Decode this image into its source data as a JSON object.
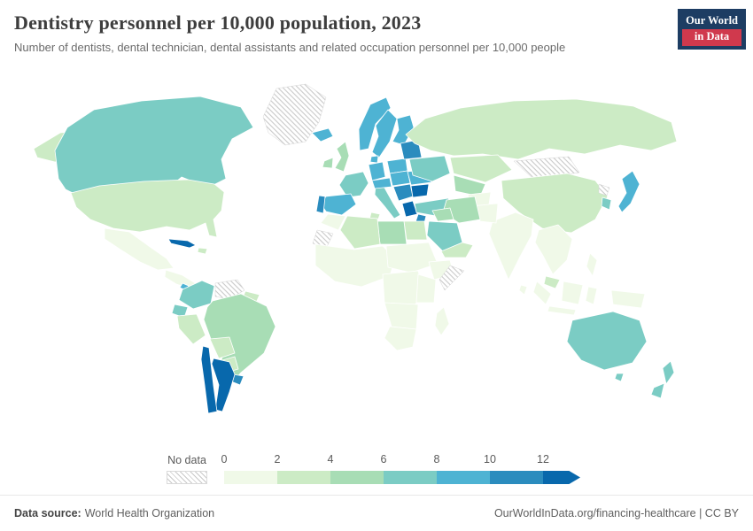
{
  "header": {
    "title": "Dentistry personnel per 10,000 population, 2023",
    "subtitle": "Number of dentists, dental technician, dental assistants and related occupation personnel per 10,000 people",
    "logo_line1": "Our World",
    "logo_line2": "in Data"
  },
  "legend": {
    "no_data_label": "No data",
    "ticks": [
      "0",
      "2",
      "4",
      "6",
      "8",
      "10",
      "12"
    ],
    "colors": [
      "#f0f9e8",
      "#ccebc5",
      "#a8ddb5",
      "#7bccc4",
      "#4eb3d3",
      "#2b8cbe",
      "#0868ac"
    ]
  },
  "footer": {
    "datasource_label": "Data source:",
    "datasource_value": "World Health Organization",
    "attribution": "OurWorldInData.org/financing-healthcare | CC BY"
  },
  "chart_data": {
    "type": "choropleth_map",
    "title": "Dentistry personnel per 10,000 population, 2023",
    "year": 2023,
    "unit": "personnel per 10,000 people",
    "legend_bins": [
      "0-2",
      "2-4",
      "4-6",
      "6-8",
      "8-10",
      "10-12",
      "12+"
    ],
    "no_data_style": "diagonal-hatch",
    "regions": [
      {
        "id": "alaska",
        "name": "United States (Alaska)",
        "value": "2-4"
      },
      {
        "id": "canada",
        "name": "Canada",
        "value": "6-8"
      },
      {
        "id": "greenland",
        "name": "Greenland",
        "value": "no-data"
      },
      {
        "id": "usa",
        "name": "United States",
        "value": "2-4"
      },
      {
        "id": "mexico",
        "name": "Mexico",
        "value": "0-2"
      },
      {
        "id": "central-america",
        "name": "Central America",
        "value": "0-2"
      },
      {
        "id": "costa-rica",
        "name": "Costa Rica",
        "value": "8-10"
      },
      {
        "id": "cuba",
        "name": "Cuba",
        "value": "12+"
      },
      {
        "id": "hispaniola",
        "name": "Dominican Republic / Haiti",
        "value": "2-4"
      },
      {
        "id": "colombia",
        "name": "Colombia",
        "value": "6-8"
      },
      {
        "id": "venezuela",
        "name": "Venezuela",
        "value": "no-data"
      },
      {
        "id": "guyanas",
        "name": "Guyana / Suriname",
        "value": "2-4"
      },
      {
        "id": "ecuador",
        "name": "Ecuador",
        "value": "6-8"
      },
      {
        "id": "peru",
        "name": "Peru",
        "value": "2-4"
      },
      {
        "id": "brazil",
        "name": "Brazil",
        "value": "4-6"
      },
      {
        "id": "bolivia",
        "name": "Bolivia",
        "value": "2-4"
      },
      {
        "id": "paraguay",
        "name": "Paraguay",
        "value": "2-4"
      },
      {
        "id": "uruguay",
        "name": "Uruguay",
        "value": "10-12"
      },
      {
        "id": "argentina",
        "name": "Argentina",
        "value": "12+"
      },
      {
        "id": "chile",
        "name": "Chile",
        "value": "12+"
      },
      {
        "id": "iceland",
        "name": "Iceland",
        "value": "8-10"
      },
      {
        "id": "ireland",
        "name": "Ireland",
        "value": "4-6"
      },
      {
        "id": "uk",
        "name": "United Kingdom",
        "value": "4-6"
      },
      {
        "id": "norway",
        "name": "Norway",
        "value": "8-10"
      },
      {
        "id": "sweden",
        "name": "Sweden",
        "value": "8-10"
      },
      {
        "id": "finland",
        "name": "Finland",
        "value": "8-10"
      },
      {
        "id": "denmark",
        "name": "Denmark",
        "value": "8-10"
      },
      {
        "id": "germany",
        "name": "Germany",
        "value": "8-10"
      },
      {
        "id": "france",
        "name": "France",
        "value": "6-8"
      },
      {
        "id": "spain",
        "name": "Spain",
        "value": "8-10"
      },
      {
        "id": "portugal",
        "name": "Portugal",
        "value": "10-12"
      },
      {
        "id": "italy",
        "name": "Italy",
        "value": "6-8"
      },
      {
        "id": "alpine",
        "name": "Switzerland / Austria",
        "value": "8-10"
      },
      {
        "id": "poland",
        "name": "Poland",
        "value": "8-10"
      },
      {
        "id": "czech-hungary",
        "name": "Czechia / Slovakia / Hungary",
        "value": "8-10"
      },
      {
        "id": "balkans",
        "name": "Western Balkans",
        "value": "10-12"
      },
      {
        "id": "greece",
        "name": "Greece",
        "value": "12+"
      },
      {
        "id": "romania",
        "name": "Romania",
        "value": "8-10"
      },
      {
        "id": "bulgaria",
        "name": "Bulgaria",
        "value": "12+"
      },
      {
        "id": "ukraine",
        "name": "Ukraine",
        "value": "6-8"
      },
      {
        "id": "baltics-belarus",
        "name": "Baltic states / Belarus",
        "value": "10-12"
      },
      {
        "id": "turkey",
        "name": "Turkey",
        "value": "6-8"
      },
      {
        "id": "russia",
        "name": "Russia",
        "value": "2-4"
      },
      {
        "id": "kazakhstan",
        "name": "Kazakhstan",
        "value": "2-4"
      },
      {
        "id": "central-asia",
        "name": "Central Asia",
        "value": "4-6"
      },
      {
        "id": "mongolia",
        "name": "Mongolia",
        "value": "no-data"
      },
      {
        "id": "china",
        "name": "China",
        "value": "2-4"
      },
      {
        "id": "north-korea",
        "name": "North Korea",
        "value": "no-data"
      },
      {
        "id": "south-korea",
        "name": "South Korea",
        "value": "6-8"
      },
      {
        "id": "japan",
        "name": "Japan",
        "value": "8-10"
      },
      {
        "id": "india",
        "name": "India",
        "value": "0-2"
      },
      {
        "id": "sri-lanka",
        "name": "Sri Lanka",
        "value": "0-2"
      },
      {
        "id": "pakistan",
        "name": "Pakistan",
        "value": "0-2"
      },
      {
        "id": "afghanistan",
        "name": "Afghanistan",
        "value": "0-2"
      },
      {
        "id": "iran",
        "name": "Iran",
        "value": "4-6"
      },
      {
        "id": "iraq",
        "name": "Iraq",
        "value": "4-6"
      },
      {
        "id": "saudi-arabia",
        "name": "Saudi Arabia",
        "value": "6-8"
      },
      {
        "id": "israel-jordan",
        "name": "Israel / Jordan",
        "value": "10-12"
      },
      {
        "id": "yemen-oman",
        "name": "Yemen / Oman",
        "value": "2-4"
      },
      {
        "id": "egypt",
        "name": "Egypt",
        "value": "2-4"
      },
      {
        "id": "libya",
        "name": "Libya",
        "value": "4-6"
      },
      {
        "id": "tunisia",
        "name": "Tunisia",
        "value": "2-4"
      },
      {
        "id": "algeria",
        "name": "Algeria",
        "value": "2-4"
      },
      {
        "id": "morocco",
        "name": "Morocco",
        "value": "0-2"
      },
      {
        "id": "western-sahara",
        "name": "Western Sahara",
        "value": "no-data"
      },
      {
        "id": "west-africa",
        "name": "Western Africa",
        "value": "0-2"
      },
      {
        "id": "sahel-sudan",
        "name": "Chad / Sudan",
        "value": "0-2"
      },
      {
        "id": "ethiopia",
        "name": "Ethiopia",
        "value": "0-2"
      },
      {
        "id": "somalia",
        "name": "Somalia",
        "value": "no-data"
      },
      {
        "id": "central-africa",
        "name": "Central Africa",
        "value": "0-2"
      },
      {
        "id": "east-africa",
        "name": "Eastern Africa",
        "value": "0-2"
      },
      {
        "id": "southern-africa",
        "name": "Angola / Zambia / Zimbabwe",
        "value": "0-2"
      },
      {
        "id": "south-africa",
        "name": "South Africa",
        "value": "0-2"
      },
      {
        "id": "madagascar",
        "name": "Madagascar",
        "value": "0-2"
      },
      {
        "id": "indochina",
        "name": "Myanmar / Thailand / Indochina",
        "value": "0-2"
      },
      {
        "id": "malaysia",
        "name": "Malaysia",
        "value": "2-4"
      },
      {
        "id": "philippines",
        "name": "Philippines",
        "value": "0-2"
      },
      {
        "id": "sumatra",
        "name": "Indonesia (Sumatra)",
        "value": "0-2"
      },
      {
        "id": "borneo",
        "name": "Indonesia (Borneo)",
        "value": "0-2"
      },
      {
        "id": "sulawesi",
        "name": "Indonesia (Sulawesi)",
        "value": "0-2"
      },
      {
        "id": "java",
        "name": "Indonesia (Java)",
        "value": "0-2"
      },
      {
        "id": "new-guinea",
        "name": "Papua New Guinea",
        "value": "0-2"
      },
      {
        "id": "australia",
        "name": "Australia",
        "value": "6-8"
      },
      {
        "id": "tasmania",
        "name": "Australia (Tasmania)",
        "value": "6-8"
      },
      {
        "id": "nz-north",
        "name": "New Zealand (North Island)",
        "value": "6-8"
      },
      {
        "id": "nz-south",
        "name": "New Zealand (South Island)",
        "value": "6-8"
      }
    ]
  }
}
